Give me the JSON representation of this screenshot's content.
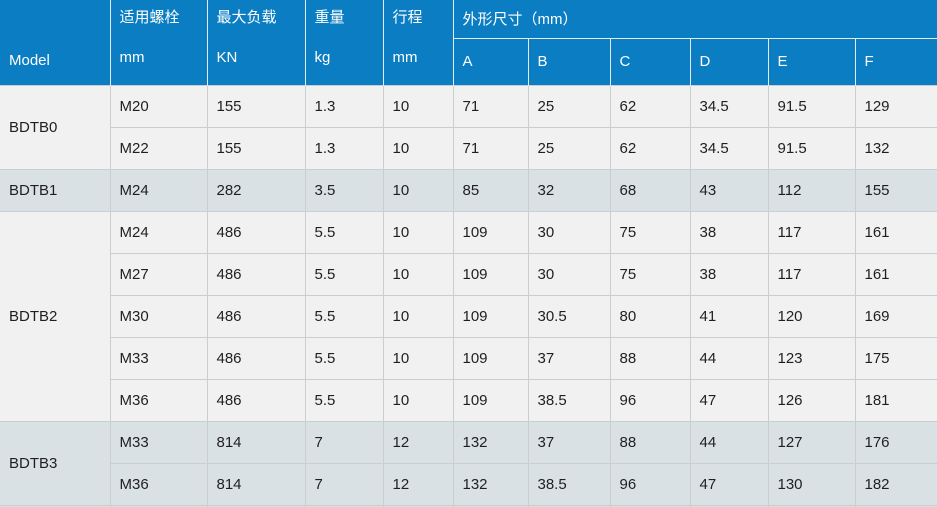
{
  "table": {
    "header": {
      "model_label": "Model",
      "columns": [
        {
          "line1": "适用螺栓",
          "line2": "mm"
        },
        {
          "line1": "最大负载",
          "line2": "KN"
        },
        {
          "line1": "重量",
          "line2": "kg"
        },
        {
          "line1": "行程",
          "line2": "mm"
        }
      ],
      "dim_group_label": "外形尺寸（mm）",
      "dim_columns": [
        "A",
        "B",
        "C",
        "D",
        "E",
        "F"
      ]
    },
    "sections": [
      {
        "model": "BDTB0",
        "shaded": false,
        "rows": [
          [
            "M20",
            "155",
            "1.3",
            "10",
            "71",
            "25",
            "62",
            "34.5",
            "91.5",
            "129"
          ],
          [
            "M22",
            "155",
            "1.3",
            "10",
            "71",
            "25",
            "62",
            "34.5",
            "91.5",
            "132"
          ]
        ]
      },
      {
        "model": "BDTB1",
        "shaded": true,
        "rows": [
          [
            "M24",
            "282",
            "3.5",
            "10",
            "85",
            "32",
            "68",
            "43",
            "112",
            "155"
          ]
        ]
      },
      {
        "model": "BDTB2",
        "shaded": false,
        "rows": [
          [
            "M24",
            "486",
            "5.5",
            "10",
            "109",
            "30",
            "75",
            "38",
            "117",
            "161"
          ],
          [
            "M27",
            "486",
            "5.5",
            "10",
            "109",
            "30",
            "75",
            "38",
            "117",
            "161"
          ],
          [
            "M30",
            "486",
            "5.5",
            "10",
            "109",
            "30.5",
            "80",
            "41",
            "120",
            "169"
          ],
          [
            "M33",
            "486",
            "5.5",
            "10",
            "109",
            "37",
            "88",
            "44",
            "123",
            "175"
          ],
          [
            "M36",
            "486",
            "5.5",
            "10",
            "109",
            "38.5",
            "96",
            "47",
            "126",
            "181"
          ]
        ]
      },
      {
        "model": "BDTB3",
        "shaded": true,
        "rows": [
          [
            "M33",
            "814",
            "7",
            "12",
            "132",
            "37",
            "88",
            "44",
            "127",
            "176"
          ],
          [
            "M36",
            "814",
            "7",
            "12",
            "132",
            "38.5",
            "96",
            "47",
            "130",
            "182"
          ]
        ]
      }
    ]
  },
  "colors": {
    "header_bg": "#0b7dc3",
    "header_text": "#ffffff",
    "row_light": "#f1f1f1",
    "row_shaded": "#d9e1e5",
    "grid_line": "#c9ced1",
    "bottom_bar": "#aebfc8",
    "body_text": "#1f1f1f"
  }
}
